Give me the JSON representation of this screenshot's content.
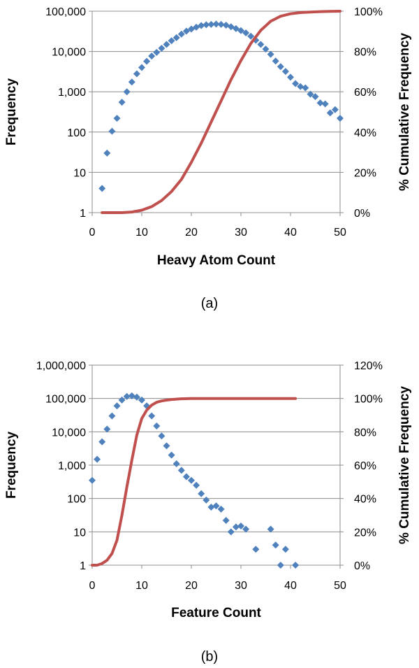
{
  "chart_data": [
    {
      "type": "scatter",
      "caption": "(a)",
      "xlabel": "Heavy Atom Count",
      "ylabel": "Frequency",
      "y2label": "% Cumulative Frequency",
      "xlim": [
        0,
        50
      ],
      "x_ticks": [
        0,
        10,
        20,
        30,
        40,
        50
      ],
      "x_tick_labels": [
        "0",
        "10",
        "20",
        "30",
        "40",
        "50"
      ],
      "ylim": [
        1,
        100000
      ],
      "yscale": "log",
      "y_ticks": [
        1,
        10,
        100,
        1000,
        10000,
        100000
      ],
      "y_tick_labels": [
        "1",
        "10",
        "100",
        "1,000",
        "10,000",
        "100,000"
      ],
      "y2lim": [
        0,
        100
      ],
      "y2_ticks": [
        0,
        20,
        40,
        60,
        80,
        100
      ],
      "y2_tick_labels": [
        "0%",
        "20%",
        "40%",
        "60%",
        "80%",
        "100%"
      ],
      "grid": "horizontal",
      "legend": "none",
      "series": [
        {
          "kind": "scatter",
          "axis": "left",
          "color": "#4f81bd",
          "marker": "diamond",
          "x": [
            2,
            3,
            4,
            5,
            6,
            7,
            8,
            9,
            10,
            11,
            12,
            13,
            14,
            15,
            16,
            17,
            18,
            19,
            20,
            21,
            22,
            23,
            24,
            25,
            26,
            27,
            28,
            29,
            30,
            31,
            32,
            33,
            34,
            35,
            36,
            37,
            38,
            39,
            40,
            41,
            42,
            43,
            44,
            45,
            46,
            47,
            48,
            49,
            50
          ],
          "y": [
            4,
            30,
            105,
            220,
            550,
            1000,
            1750,
            2800,
            4000,
            5700,
            7700,
            9500,
            12000,
            15000,
            18500,
            22000,
            27000,
            32000,
            36000,
            40000,
            44000,
            46000,
            47000,
            48000,
            47000,
            45000,
            41000,
            37000,
            33000,
            29000,
            24000,
            19000,
            15000,
            11500,
            8500,
            5800,
            4200,
            3200,
            2300,
            1600,
            1350,
            1250,
            870,
            760,
            530,
            500,
            300,
            360,
            220
          ]
        },
        {
          "kind": "line",
          "axis": "right",
          "color": "#c0504d",
          "x": [
            2,
            4,
            6,
            8,
            10,
            12,
            14,
            16,
            18,
            20,
            22,
            24,
            26,
            28,
            30,
            32,
            34,
            36,
            38,
            40,
            42,
            44,
            46,
            48,
            50
          ],
          "y": [
            0,
            0,
            0,
            0.3,
            1.2,
            3,
            6,
            10.5,
            16.5,
            25,
            34.5,
            45,
            55.5,
            66,
            75.5,
            84,
            90.5,
            95,
            97.5,
            98.7,
            99.3,
            99.6,
            99.8,
            99.9,
            100
          ]
        }
      ]
    },
    {
      "type": "scatter",
      "caption": "(b)",
      "xlabel": "Feature Count",
      "ylabel": "Frequency",
      "y2label": "% Cumulative Frequency",
      "xlim": [
        0,
        50
      ],
      "x_ticks": [
        0,
        10,
        20,
        30,
        40,
        50
      ],
      "x_tick_labels": [
        "0",
        "10",
        "20",
        "30",
        "40",
        "50"
      ],
      "ylim": [
        1,
        1000000
      ],
      "yscale": "log",
      "y_ticks": [
        1,
        10,
        100,
        1000,
        10000,
        100000,
        1000000
      ],
      "y_tick_labels": [
        "1",
        "10",
        "100",
        "1,000",
        "10,000",
        "100,000",
        "1,000,000"
      ],
      "y2lim": [
        0,
        120
      ],
      "y2_ticks": [
        0,
        20,
        40,
        60,
        80,
        100,
        120
      ],
      "y2_tick_labels": [
        "0%",
        "20%",
        "40%",
        "60%",
        "80%",
        "100%",
        "120%"
      ],
      "grid": "horizontal",
      "legend": "none",
      "series": [
        {
          "kind": "scatter",
          "axis": "left",
          "color": "#4f81bd",
          "marker": "diamond",
          "x": [
            0,
            1,
            2,
            3,
            4,
            5,
            6,
            7,
            8,
            9,
            10,
            11,
            12,
            13,
            14,
            15,
            16,
            17,
            18,
            19,
            20,
            21,
            22,
            23,
            24,
            25,
            26,
            27,
            28,
            29,
            30,
            31,
            33,
            36,
            37,
            38,
            39,
            41
          ],
          "y": [
            350,
            1500,
            5000,
            12000,
            30000,
            60000,
            90000,
            115000,
            120000,
            110000,
            90000,
            60000,
            30000,
            15000,
            7500,
            3800,
            2000,
            1100,
            700,
            450,
            350,
            250,
            140,
            90,
            55,
            60,
            48,
            22,
            10,
            14,
            15,
            12,
            3,
            12,
            4,
            1,
            3,
            1
          ]
        },
        {
          "kind": "line",
          "axis": "right",
          "color": "#c0504d",
          "x": [
            0,
            1,
            2,
            3,
            4,
            5,
            6,
            7,
            8,
            9,
            10,
            11,
            12,
            13,
            14,
            15,
            16,
            17,
            18,
            20,
            25,
            30,
            35,
            41
          ],
          "y": [
            0,
            0,
            1,
            3,
            7,
            15,
            30,
            47,
            63,
            78,
            88,
            93,
            96,
            97.7,
            98.5,
            99,
            99.4,
            99.6,
            99.8,
            100,
            100,
            100,
            100,
            100
          ]
        }
      ]
    }
  ]
}
